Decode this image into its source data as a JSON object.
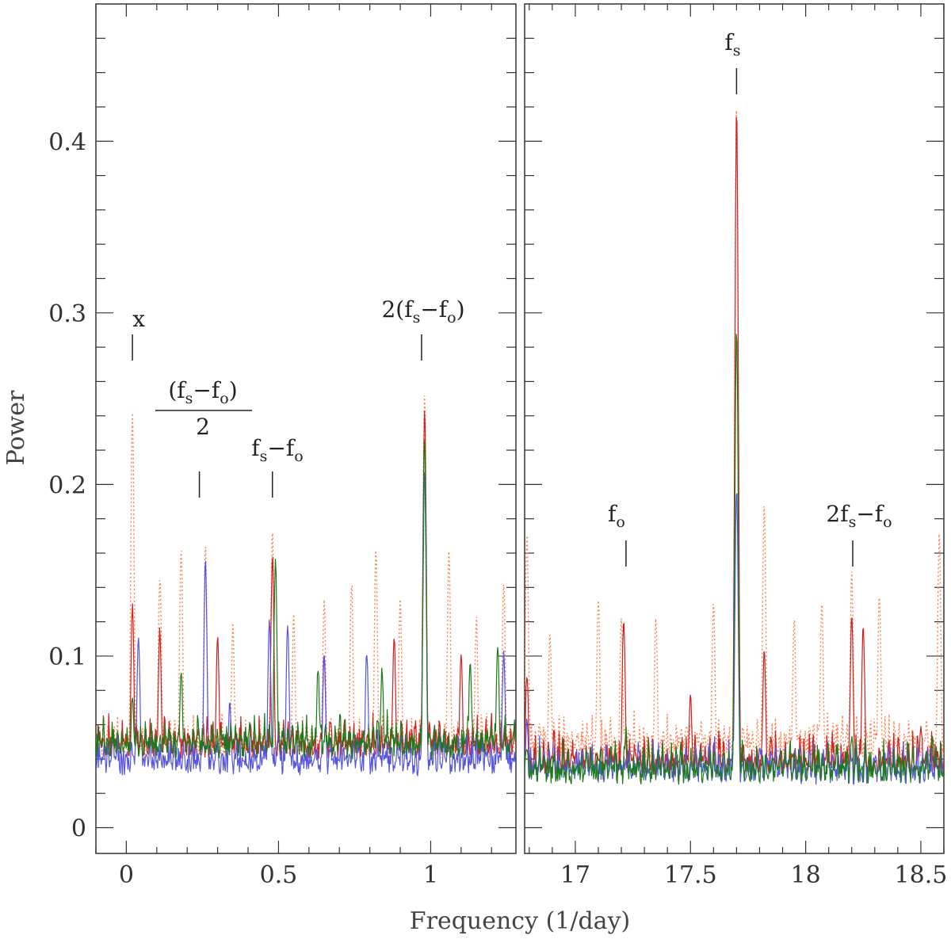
{
  "chart_data": [
    {
      "type": "line",
      "panel": "left",
      "xlabel": "Frequency (1/day)",
      "ylabel": "Power",
      "xlim": [
        -0.1,
        1.28
      ],
      "ylim": [
        -0.015,
        0.48
      ],
      "x_ticks": [
        0,
        0.5,
        1
      ],
      "x_tick_labels": [
        "0",
        "0.5",
        "1"
      ],
      "y_ticks": [
        0,
        0.1,
        0.2,
        0.3,
        0.4
      ],
      "y_tick_labels": [
        "0",
        "0.1",
        "0.2",
        "0.3",
        "0.4"
      ],
      "series": [
        {
          "color": "#ff7f50",
          "style": "dotted",
          "peaks": [
            [
              0.02,
              0.24
            ],
            [
              0.11,
              0.145
            ],
            [
              0.18,
              0.16
            ],
            [
              0.26,
              0.16
            ],
            [
              0.35,
              0.115
            ],
            [
              0.48,
              0.17
            ],
            [
              0.55,
              0.12
            ],
            [
              0.65,
              0.13
            ],
            [
              0.74,
              0.14
            ],
            [
              0.82,
              0.16
            ],
            [
              0.9,
              0.13
            ],
            [
              0.98,
              0.252
            ],
            [
              1.06,
              0.16
            ],
            [
              1.15,
              0.12
            ],
            [
              1.24,
              0.14
            ]
          ],
          "base": 0.04
        },
        {
          "color": "#cc2222",
          "style": "solid",
          "peaks": [
            [
              0.02,
              0.127
            ],
            [
              0.11,
              0.113
            ],
            [
              0.3,
              0.11
            ],
            [
              0.48,
              0.155
            ],
            [
              0.65,
              0.1
            ],
            [
              0.88,
              0.11
            ],
            [
              0.98,
              0.24
            ],
            [
              1.1,
              0.1
            ]
          ],
          "base": 0.04
        },
        {
          "color": "#5555dd",
          "style": "solid",
          "peaks": [
            [
              0.04,
              0.108
            ],
            [
              0.26,
              0.153
            ],
            [
              0.34,
              0.07
            ],
            [
              0.47,
              0.117
            ],
            [
              0.53,
              0.117
            ],
            [
              0.65,
              0.1
            ],
            [
              0.79,
              0.1
            ],
            [
              0.98,
              0.203
            ],
            [
              1.24,
              0.1
            ]
          ],
          "base": 0.03
        },
        {
          "color": "#1a7a1a",
          "style": "solid",
          "peaks": [
            [
              0.02,
              0.075
            ],
            [
              0.18,
              0.09
            ],
            [
              0.49,
              0.153
            ],
            [
              0.63,
              0.09
            ],
            [
              0.84,
              0.09
            ],
            [
              0.98,
              0.225
            ],
            [
              1.13,
              0.095
            ],
            [
              1.22,
              0.105
            ]
          ],
          "base": 0.04
        }
      ],
      "annotations": [
        {
          "x": 0.02,
          "label": "x"
        },
        {
          "x": 0.24,
          "label": "(fs-fo)/2"
        },
        {
          "x": 0.48,
          "label": "fs-fo"
        },
        {
          "x": 0.97,
          "label": "2(fs-fo)"
        }
      ]
    },
    {
      "type": "line",
      "panel": "right",
      "xlabel": "Frequency (1/day)",
      "ylabel": "",
      "xlim": [
        16.78,
        18.6
      ],
      "ylim": [
        -0.015,
        0.48
      ],
      "x_ticks": [
        17,
        17.5,
        18,
        18.5
      ],
      "x_tick_labels": [
        "17",
        "17.5",
        "18",
        "18.5"
      ],
      "y_ticks": [
        0,
        0.1,
        0.2,
        0.3,
        0.4
      ],
      "series": [
        {
          "color": "#ff7f50",
          "style": "dotted",
          "peaks": [
            [
              16.79,
              0.17
            ],
            [
              16.89,
              0.11
            ],
            [
              17.1,
              0.13
            ],
            [
              17.2,
              0.12
            ],
            [
              17.35,
              0.12
            ],
            [
              17.6,
              0.13
            ],
            [
              17.7,
              0.42
            ],
            [
              17.82,
              0.188
            ],
            [
              17.95,
              0.12
            ],
            [
              18.07,
              0.13
            ],
            [
              18.2,
              0.145
            ],
            [
              18.32,
              0.135
            ],
            [
              18.58,
              0.17
            ]
          ],
          "base": 0.04
        },
        {
          "color": "#cc2222",
          "style": "solid",
          "peaks": [
            [
              16.79,
              0.088
            ],
            [
              17.21,
              0.12
            ],
            [
              17.5,
              0.075
            ],
            [
              17.7,
              0.418
            ],
            [
              17.82,
              0.1
            ],
            [
              18.2,
              0.12
            ],
            [
              18.25,
              0.115
            ],
            [
              18.5,
              0.055
            ]
          ],
          "base": 0.03
        },
        {
          "color": "#5555dd",
          "style": "solid",
          "peaks": [
            [
              16.79,
              0.06
            ],
            [
              17.15,
              0.04
            ],
            [
              17.7,
              0.195
            ],
            [
              17.8,
              0.045
            ],
            [
              18.3,
              0.04
            ]
          ],
          "base": 0.025
        },
        {
          "color": "#1a7a1a",
          "style": "solid",
          "peaks": [
            [
              16.79,
              0.045
            ],
            [
              17.22,
              0.055
            ],
            [
              17.7,
              0.29
            ],
            [
              18.2,
              0.05
            ],
            [
              18.55,
              0.05
            ]
          ],
          "base": 0.025
        }
      ],
      "annotations": [
        {
          "x": 17.22,
          "label": "fo"
        },
        {
          "x": 17.7,
          "label": "fs"
        },
        {
          "x": 18.15,
          "label": "2fs-fo"
        }
      ]
    }
  ],
  "labels": {
    "xlabel": "Frequency (1/day)",
    "ylabel": "Power"
  }
}
